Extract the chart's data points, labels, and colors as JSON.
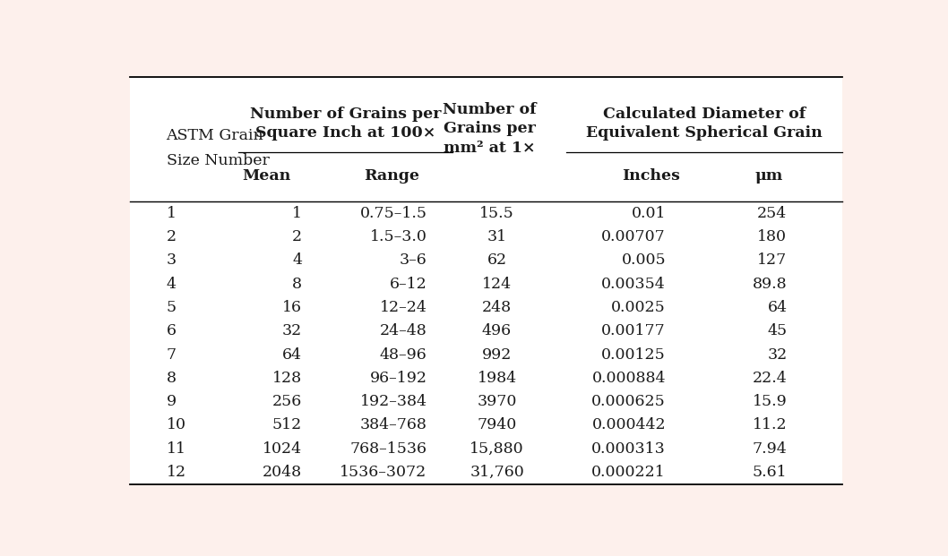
{
  "background_color": "#ffffff",
  "outer_bg": "#fdf0ec",
  "text_color": "#1a1a1a",
  "header_color": "#1a1a1a",
  "col1_label": [
    "ASTM Grain",
    "Size Number"
  ],
  "group2_label": [
    "Number of Grains per",
    "Square Inch at 100×"
  ],
  "col2_label": "Mean",
  "col3_label": "Range",
  "col4_label": [
    "Number of",
    "Grains per",
    "mm² at 1×"
  ],
  "group5_label": [
    "Calculated Diameter of",
    "Equivalent Spherical Grain"
  ],
  "col5_label": "Inches",
  "col6_label": "μm",
  "rows": [
    [
      "1",
      "1",
      "0.75–1.5",
      "15.5",
      "0.01",
      "254"
    ],
    [
      "2",
      "2",
      "1.5–3.0",
      "31",
      "0.00707",
      "180"
    ],
    [
      "3",
      "4",
      "3–6",
      "62",
      "0.005",
      "127"
    ],
    [
      "4",
      "8",
      "6–12",
      "124",
      "0.00354",
      "89.8"
    ],
    [
      "5",
      "16",
      "12–24",
      "248",
      "0.0025",
      "64"
    ],
    [
      "6",
      "32",
      "24–48",
      "496",
      "0.00177",
      "45"
    ],
    [
      "7",
      "64",
      "48–96",
      "992",
      "0.00125",
      "32"
    ],
    [
      "8",
      "128",
      "96–192",
      "1984",
      "0.000884",
      "22.4"
    ],
    [
      "9",
      "256",
      "192–384",
      "3970",
      "0.000625",
      "15.9"
    ],
    [
      "10",
      "512",
      "384–768",
      "7940",
      "0.000442",
      "11.2"
    ],
    [
      "11",
      "1024",
      "768–1536",
      "15,880",
      "0.000313",
      "7.94"
    ],
    [
      "12",
      "2048",
      "1536–3072",
      "31,760",
      "0.000221",
      "5.61"
    ]
  ],
  "font_size": 12.5,
  "header_font_size": 12.5
}
